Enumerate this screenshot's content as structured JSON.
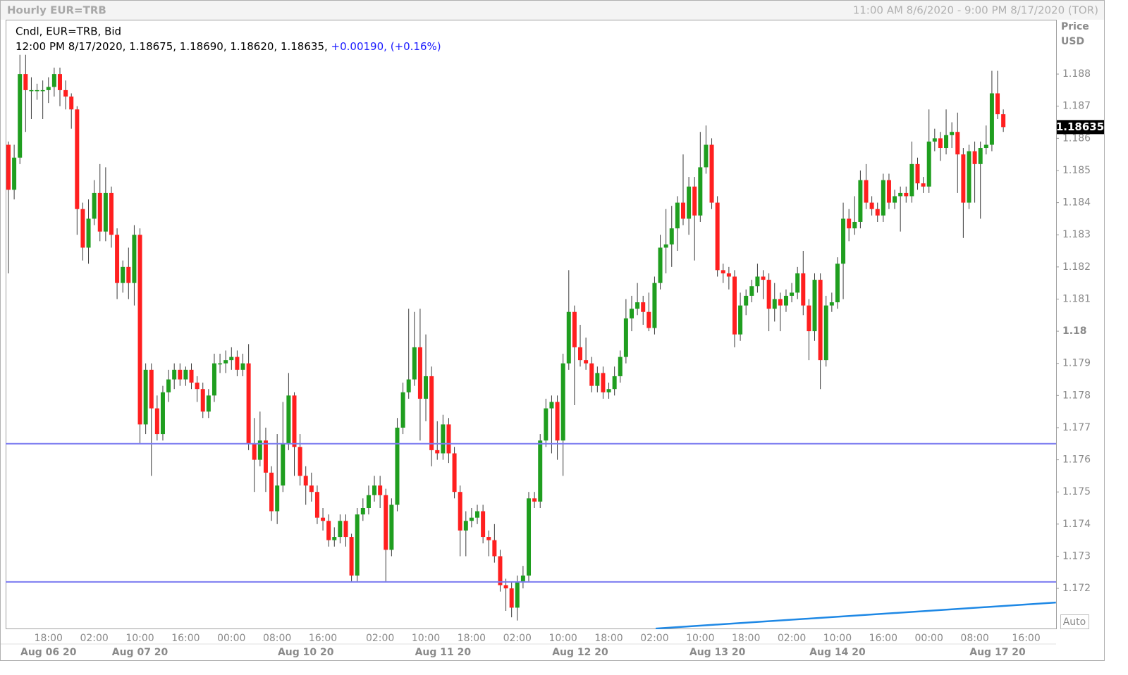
{
  "chart_data": {
    "type": "candlestick",
    "title": "Hourly EUR=TRB",
    "date_range": "11:00 AM 8/6/2020 - 9:00 PM 8/17/2020 (TOR)",
    "series_label": "Cndl, EUR=TRB, Bid",
    "readout": {
      "time": "12:00 PM 8/17/2020,",
      "open": "1.18675,",
      "high": "1.18690,",
      "low": "1.18620,",
      "close": "1.18635,",
      "change": "+0.00190,",
      "change_pct": "(+0.16%)"
    },
    "y_axis_label": "Price",
    "y_axis_unit": "USD",
    "scale_mode": "Auto",
    "up_color": "#1f9e1f",
    "down_color": "#ff1f1f",
    "ylim": [
      1.17073,
      1.18969
    ],
    "yticks": [
      1.172,
      1.173,
      1.174,
      1.175,
      1.176,
      1.177,
      1.178,
      1.179,
      1.18,
      1.181,
      1.182,
      1.183,
      1.184,
      1.185,
      1.186,
      1.187,
      1.188
    ],
    "horizontal_lines": [
      1.1765,
      1.1722
    ],
    "horizontal_line_color": "#7b7bf0",
    "trend_line": {
      "x": [
        113.2,
        183.2
      ],
      "y": [
        1.17075,
        1.17156
      ],
      "color": "#1e88e5"
    },
    "categories": [
      null,
      null,
      null,
      null,
      null,
      null,
      null,
      "18:00",
      null,
      null,
      null,
      null,
      null,
      null,
      null,
      "02:00",
      null,
      null,
      null,
      null,
      null,
      null,
      null,
      "10:00",
      null,
      null,
      null,
      null,
      null,
      null,
      null,
      "16:00",
      null,
      null,
      null,
      null,
      null,
      null,
      null,
      "00:00",
      null,
      null,
      null,
      null,
      null,
      null,
      null,
      "08:00",
      null,
      null,
      null,
      null,
      null,
      null,
      null,
      "16:00",
      null,
      null,
      null,
      null,
      null,
      null,
      null,
      null,
      null,
      "02:00",
      null,
      null,
      null,
      null,
      null,
      null,
      null,
      "10:00",
      null,
      null,
      null,
      null,
      null,
      null,
      null,
      "18:00",
      null,
      null,
      null,
      null,
      null,
      null,
      null,
      "02:00",
      null,
      null,
      null,
      null,
      null,
      null,
      null,
      "10:00",
      null,
      null,
      null,
      null,
      null,
      null,
      null,
      "18:00",
      null,
      null,
      null,
      null,
      null,
      null,
      null,
      "02:00",
      null,
      null,
      null,
      null,
      null,
      null,
      null,
      "10:00",
      null,
      null,
      null,
      null,
      null,
      null,
      null,
      "18:00",
      null,
      null,
      null,
      null,
      null,
      null,
      null,
      "02:00",
      null,
      null,
      null,
      null,
      null,
      null,
      null,
      "10:00",
      null,
      null,
      null,
      null,
      null,
      null,
      null,
      "16:00",
      null,
      null,
      null,
      null,
      null,
      null,
      null,
      "00:00",
      null,
      null,
      null,
      null,
      null,
      null,
      null,
      "08:00",
      null,
      null,
      null,
      null,
      null,
      null,
      null,
      null,
      "16:00"
    ],
    "date_categories": [
      null,
      null,
      null,
      null,
      null,
      null,
      null,
      "Aug 06 20",
      null,
      null,
      null,
      null,
      null,
      null,
      null,
      null,
      null,
      null,
      null,
      null,
      null,
      null,
      null,
      "Aug 07 20",
      null,
      null,
      null,
      null,
      null,
      null,
      null,
      null,
      null,
      null,
      null,
      null,
      null,
      null,
      null,
      null,
      null,
      null,
      null,
      null,
      null,
      null,
      null,
      null,
      null,
      null,
      null,
      null,
      "Aug 10 20",
      null,
      null,
      null,
      null,
      null,
      null,
      null,
      null,
      null,
      null,
      null,
      null,
      null,
      null,
      null,
      null,
      null,
      null,
      null,
      null,
      null,
      null,
      null,
      "Aug 11 20",
      null,
      null,
      null,
      null,
      null,
      null,
      null,
      null,
      null,
      null,
      null,
      null,
      null,
      null,
      null,
      null,
      null,
      null,
      null,
      null,
      null,
      null,
      null,
      "Aug 12 20",
      null,
      null,
      null,
      null,
      null,
      null,
      null,
      null,
      null,
      null,
      null,
      null,
      null,
      null,
      null,
      null,
      null,
      null,
      null,
      null,
      null,
      null,
      null,
      "Aug 13 20",
      null,
      null,
      null,
      null,
      null,
      null,
      null,
      null,
      null,
      null,
      null,
      null,
      null,
      null,
      null,
      null,
      null,
      null,
      null,
      null,
      "Aug 14 20",
      null,
      null,
      null,
      null,
      null,
      null,
      null,
      null,
      null,
      null,
      null,
      null,
      null,
      null,
      null,
      null,
      null,
      null,
      null,
      null,
      null,
      null,
      null,
      null,
      null,
      null,
      null,
      "Aug 17 20",
      null,
      null,
      null,
      null,
      null
    ],
    "open": [
      1.1858,
      1.1844,
      1.1854,
      1.188,
      1.1875,
      1.1875,
      1.1875,
      1.1875,
      1.1876,
      1.188,
      1.1875,
      1.1873,
      1.1869,
      1.1838,
      1.1826,
      1.1835,
      1.1843,
      1.1831,
      1.1843,
      1.183,
      1.1815,
      1.182,
      1.1815,
      1.183,
      1.1771,
      1.1788,
      1.1776,
      1.1768,
      1.1781,
      1.1785,
      1.1788,
      1.1785,
      1.1788,
      1.1784,
      1.1782,
      1.1775,
      1.178,
      1.179,
      1.179,
      1.1791,
      1.1792,
      1.1788,
      1.179,
      1.1765,
      1.176,
      1.1766,
      1.1756,
      1.1744,
      1.1752,
      1.1765,
      1.178,
      1.1764,
      1.1755,
      1.1752,
      1.175,
      1.1742,
      1.1741,
      1.1735,
      1.1736,
      1.1741,
      1.1736,
      1.1724,
      1.1743,
      1.1745,
      1.1749,
      1.1752,
      1.1749,
      1.1732,
      1.1746,
      1.177,
      1.1781,
      1.1785,
      1.1795,
      1.1779,
      1.1786,
      1.1763,
      1.1762,
      1.1771,
      1.1762,
      1.175,
      1.1738,
      1.1741,
      1.1742,
      1.1744,
      1.1736,
      1.1735,
      1.173,
      1.1721,
      1.172,
      1.1714,
      1.1722,
      1.1724,
      1.1748,
      1.1747,
      1.1766,
      1.1776,
      1.1778,
      1.1766,
      1.179,
      1.1806,
      1.1795,
      1.1791,
      1.179,
      1.1783,
      1.1787,
      1.1781,
      1.1782,
      1.1786,
      1.1792,
      1.1804,
      1.1807,
      1.1809,
      1.1806,
      1.1801,
      1.1815,
      1.1826,
      1.1827,
      1.1832,
      1.184,
      1.1835,
      1.1845,
      1.1836,
      1.1851,
      1.1858,
      1.184,
      1.1819,
      1.1818,
      1.1817,
      1.1799,
      1.1808,
      1.1811,
      1.1814,
      1.1817,
      1.1816,
      1.1807,
      1.181,
      1.1808,
      1.1811,
      1.1812,
      1.1818,
      1.1808,
      1.18,
      1.1816,
      1.1791,
      1.1808,
      1.1809,
      1.1821,
      1.1835,
      1.1832,
      1.1834,
      1.1847,
      1.184,
      1.1838,
      1.1836,
      1.1847,
      1.184,
      1.1842,
      1.1843,
      1.1842,
      1.1852,
      1.1846,
      1.1845,
      1.1859,
      1.186,
      1.1857,
      1.1861,
      1.1862,
      1.1855,
      1.184,
      1.1856,
      1.1852,
      1.1857,
      1.1858,
      1.1874,
      1.18675,
      null,
      null,
      null,
      null
    ],
    "high": [
      1.1859,
      1.1858,
      1.1886,
      1.1886,
      1.1879,
      1.1877,
      1.1878,
      1.1879,
      1.1882,
      1.1882,
      1.1878,
      1.1874,
      1.187,
      1.184,
      1.1841,
      1.1847,
      1.1852,
      1.1851,
      1.1845,
      1.1832,
      1.1822,
      1.1826,
      1.1833,
      1.1832,
      1.179,
      1.179,
      1.178,
      1.1783,
      1.1788,
      1.179,
      1.179,
      1.1789,
      1.179,
      1.1786,
      1.1784,
      1.1782,
      1.1793,
      1.1793,
      1.1794,
      1.1795,
      1.1794,
      1.1793,
      1.1796,
      1.1773,
      1.1775,
      1.177,
      1.1758,
      1.1768,
      1.1778,
      1.1787,
      1.1781,
      1.1768,
      1.1758,
      1.1756,
      1.1752,
      1.1745,
      1.1743,
      1.1739,
      1.1743,
      1.1743,
      1.1737,
      1.1745,
      1.1748,
      1.1752,
      1.1755,
      1.1755,
      1.1751,
      1.1748,
      1.1773,
      1.1784,
      1.1807,
      1.1806,
      1.1807,
      1.1799,
      1.1789,
      1.1772,
      1.1774,
      1.1773,
      1.1764,
      1.1752,
      1.1744,
      1.1745,
      1.1746,
      1.1746,
      1.1738,
      1.174,
      1.1732,
      1.1723,
      1.1722,
      1.1724,
      1.1727,
      1.175,
      1.175,
      1.1768,
      1.1779,
      1.178,
      1.178,
      1.1793,
      1.1819,
      1.1808,
      1.1802,
      1.1798,
      1.1792,
      1.1789,
      1.1789,
      1.1784,
      1.1789,
      1.1794,
      1.181,
      1.1811,
      1.1815,
      1.1811,
      1.1812,
      1.1817,
      1.183,
      1.1838,
      1.1839,
      1.1842,
      1.1855,
      1.1848,
      1.1848,
      1.1862,
      1.1864,
      1.186,
      1.1842,
      1.1821,
      1.182,
      1.1819,
      1.1812,
      1.1813,
      1.1816,
      1.1821,
      1.1819,
      1.1818,
      1.1815,
      1.1812,
      1.1813,
      1.1815,
      1.182,
      1.1825,
      1.181,
      1.1818,
      1.1818,
      1.1811,
      1.1812,
      1.1823,
      1.184,
      1.1838,
      1.1842,
      1.185,
      1.1852,
      1.1842,
      1.184,
      1.1849,
      1.1849,
      1.1844,
      1.1845,
      1.1845,
      1.1859,
      1.1854,
      1.1848,
      1.1869,
      1.1863,
      1.1862,
      1.1869,
      1.1865,
      1.1868,
      1.1857,
      1.1858,
      1.1859,
      1.1859,
      1.1864,
      1.1881,
      1.1881,
      1.1869,
      null,
      null,
      null,
      null
    ],
    "low": [
      1.1818,
      1.1841,
      1.1852,
      1.1862,
      1.1866,
      1.1872,
      1.1866,
      1.1871,
      1.1873,
      1.187,
      1.1869,
      1.1863,
      1.183,
      1.1822,
      1.1821,
      1.1833,
      1.1828,
      1.1828,
      1.1826,
      1.181,
      1.1812,
      1.181,
      1.1808,
      1.1765,
      1.1768,
      1.1755,
      1.1766,
      1.1766,
      1.1778,
      1.1782,
      1.1783,
      1.1783,
      1.1782,
      1.1778,
      1.1773,
      1.1773,
      1.1778,
      1.1787,
      1.1787,
      1.1788,
      1.1786,
      1.1786,
      1.1763,
      1.175,
      1.1758,
      1.175,
      1.1741,
      1.174,
      1.175,
      1.1763,
      1.1755,
      1.1752,
      1.1746,
      1.1747,
      1.174,
      1.1738,
      1.1733,
      1.1733,
      1.1734,
      1.1733,
      1.1722,
      1.1722,
      1.1741,
      1.1743,
      1.1747,
      1.1745,
      1.1722,
      1.173,
      1.1744,
      1.1768,
      1.1779,
      1.1783,
      1.1766,
      1.1772,
      1.1758,
      1.176,
      1.176,
      1.1759,
      1.1748,
      1.173,
      1.173,
      1.1739,
      1.174,
      1.1734,
      1.173,
      1.1728,
      1.1719,
      1.1713,
      1.1711,
      1.171,
      1.172,
      1.1722,
      1.1745,
      1.1745,
      1.1764,
      1.1762,
      1.176,
      1.1755,
      1.1788,
      1.1777,
      1.1789,
      1.1788,
      1.1781,
      1.1781,
      1.1779,
      1.1779,
      1.178,
      1.1784,
      1.179,
      1.18,
      1.1805,
      1.1802,
      1.18,
      1.1799,
      1.1813,
      1.1818,
      1.182,
      1.1825,
      1.1833,
      1.183,
      1.1822,
      1.1834,
      1.1849,
      1.1838,
      1.1817,
      1.1815,
      1.1813,
      1.1795,
      1.1797,
      1.1805,
      1.1809,
      1.1812,
      1.181,
      1.18,
      1.1803,
      1.18,
      1.1806,
      1.1809,
      1.181,
      1.1805,
      1.1791,
      1.1797,
      1.1782,
      1.1789,
      1.1806,
      1.1807,
      1.181,
      1.1828,
      1.183,
      1.1832,
      1.1838,
      1.1836,
      1.1834,
      1.1834,
      1.1838,
      1.1838,
      1.1831,
      1.184,
      1.184,
      1.1844,
      1.1843,
      1.1843,
      1.1856,
      1.1853,
      1.1855,
      1.1857,
      1.1843,
      1.1829,
      1.1838,
      1.184,
      1.1835,
      1.1855,
      1.1856,
      1.1866,
      1.1862,
      null,
      null,
      null,
      null
    ],
    "close": [
      1.1844,
      1.1854,
      1.188,
      1.1875,
      1.1875,
      1.1875,
      1.1875,
      1.1876,
      1.188,
      1.1875,
      1.1873,
      1.1869,
      1.1838,
      1.1826,
      1.1835,
      1.1843,
      1.1831,
      1.1843,
      1.183,
      1.1815,
      1.182,
      1.1815,
      1.183,
      1.1771,
      1.1788,
      1.1776,
      1.1768,
      1.1781,
      1.1785,
      1.1788,
      1.1785,
      1.1788,
      1.1784,
      1.1782,
      1.1775,
      1.178,
      1.179,
      1.179,
      1.1791,
      1.1792,
      1.1788,
      1.179,
      1.1765,
      1.176,
      1.1766,
      1.1756,
      1.1744,
      1.1752,
      1.1765,
      1.178,
      1.1764,
      1.1755,
      1.1752,
      1.175,
      1.1742,
      1.1741,
      1.1735,
      1.1736,
      1.1741,
      1.1736,
      1.1724,
      1.1743,
      1.1745,
      1.1749,
      1.1752,
      1.1749,
      1.1732,
      1.1746,
      1.177,
      1.1781,
      1.1785,
      1.1795,
      1.1779,
      1.1786,
      1.1763,
      1.1762,
      1.1771,
      1.1762,
      1.175,
      1.1738,
      1.1741,
      1.1742,
      1.1744,
      1.1736,
      1.1735,
      1.173,
      1.1721,
      1.172,
      1.1714,
      1.1722,
      1.1724,
      1.1748,
      1.1747,
      1.1766,
      1.1776,
      1.1778,
      1.1766,
      1.179,
      1.1806,
      1.1795,
      1.1791,
      1.179,
      1.1783,
      1.1787,
      1.1781,
      1.1782,
      1.1786,
      1.1792,
      1.1804,
      1.1807,
      1.1809,
      1.1806,
      1.1801,
      1.1815,
      1.1826,
      1.1827,
      1.1832,
      1.184,
      1.1835,
      1.1845,
      1.1836,
      1.1851,
      1.1858,
      1.184,
      1.1819,
      1.1818,
      1.1817,
      1.1799,
      1.1808,
      1.1811,
      1.1814,
      1.1817,
      1.1816,
      1.1807,
      1.181,
      1.1808,
      1.1811,
      1.1812,
      1.1818,
      1.1808,
      1.18,
      1.1816,
      1.1791,
      1.1808,
      1.1809,
      1.1821,
      1.1835,
      1.1832,
      1.1834,
      1.1847,
      1.184,
      1.1838,
      1.1836,
      1.1847,
      1.184,
      1.1842,
      1.1843,
      1.1842,
      1.1852,
      1.1846,
      1.1845,
      1.1859,
      1.186,
      1.1857,
      1.1861,
      1.1862,
      1.1855,
      1.184,
      1.1856,
      1.1852,
      1.1857,
      1.1858,
      1.1874,
      1.18675,
      1.18635,
      null,
      null,
      null,
      null
    ]
  }
}
